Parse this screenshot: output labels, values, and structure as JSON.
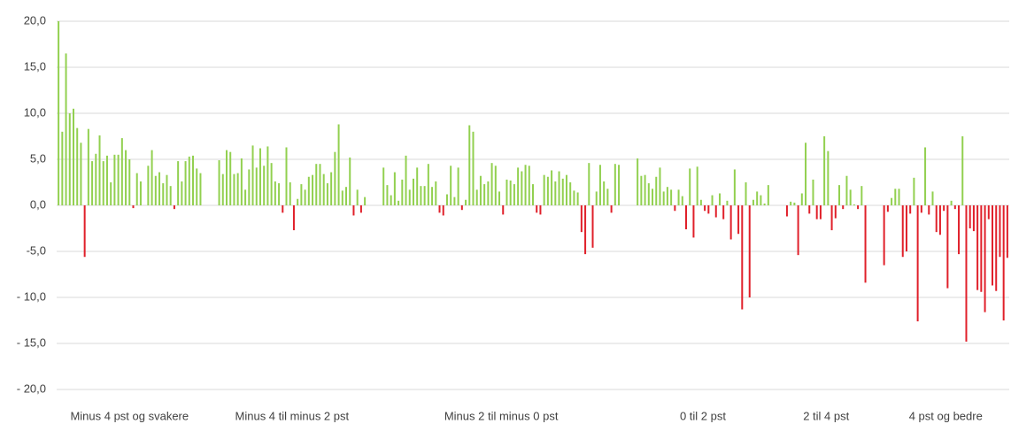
{
  "chart_data": {
    "type": "grouped-bar",
    "ylim": [
      -20,
      20
    ],
    "yticks": [
      {
        "value": 20,
        "label": "20,0"
      },
      {
        "value": 15,
        "label": "15,0"
      },
      {
        "value": 10,
        "label": "10,0"
      },
      {
        "value": 5,
        "label": "5,0"
      },
      {
        "value": 0,
        "label": "0,0"
      },
      {
        "value": -5,
        "label": "-5,0"
      },
      {
        "value": -10,
        "label": "- 10,0"
      },
      {
        "value": -15,
        "label": "- 15,0"
      },
      {
        "value": -20,
        "label": "- 20,0"
      }
    ],
    "grid": true,
    "positive_color": "#92d050",
    "negative_color": "#e0202a",
    "groups": [
      {
        "name": "Minus 4  pst og svakere",
        "values": [
          20,
          8,
          16.5,
          10,
          10.5,
          8.4,
          6.8,
          -5.6,
          8.3,
          4.8,
          5.6,
          7.6,
          4.8,
          5.4,
          2.5,
          5.5,
          5.5,
          7.3,
          6,
          5,
          -0.3,
          3.5,
          2.6,
          0,
          4.3,
          6,
          3.2,
          3.6,
          2.4,
          3.3,
          2.1,
          -0.4,
          4.8,
          2.6,
          4.8,
          5.3,
          5.4,
          4,
          3.5
        ]
      },
      {
        "name": "Minus 4 til minus 2 pst",
        "values": [
          4.9,
          3.4,
          6,
          5.8,
          3.4,
          3.5,
          5.1,
          1.7,
          3.9,
          6.5,
          4.1,
          6.2,
          4.3,
          6.4,
          4.6,
          2.6,
          2.4,
          -0.8,
          6.3,
          2.5,
          -2.7,
          0.7,
          2.3,
          1.7,
          3.1,
          3.3,
          4.5,
          4.5,
          3.4,
          2.4,
          3.6,
          5.8,
          8.8,
          1.6,
          2,
          5.2,
          -1.1,
          1.7,
          -0.8,
          0.9
        ]
      },
      {
        "name": "Minus 2 til minus 0 pst",
        "values": [
          4.1,
          2.2,
          1.1,
          3.6,
          0.5,
          2.8,
          5.4,
          1.7,
          2.9,
          4.1,
          2.1,
          2.1,
          4.5,
          2,
          2.6,
          -0.8,
          -1.1,
          1.2,
          4.3,
          0.9,
          4.1,
          -0.5,
          0.6,
          8.7,
          8,
          1.7,
          3.2,
          2.3,
          2.6,
          4.6,
          4.3,
          1.5,
          -1,
          2.8,
          2.7,
          2.3,
          4.1,
          3.7,
          4.4,
          4.3,
          2.3,
          -0.8,
          -1,
          3.3,
          3.1,
          3.8,
          2.6,
          3.7,
          2.9,
          3.3,
          2.5,
          1.6,
          1.4,
          -2.9,
          -5.3,
          4.6,
          -4.6,
          1.5,
          4.4,
          2.6,
          1.8,
          -0.8,
          4.5,
          4.4
        ]
      },
      {
        "name": "0 til 2 pst",
        "values": [
          5.1,
          3.2,
          3.3,
          2.4,
          1.8,
          3.1,
          4.1,
          1.5,
          2,
          1.7,
          -0.6,
          1.7,
          1,
          -2.6,
          4,
          -3.5,
          4.2,
          0.6,
          -0.6,
          -0.9,
          1.1,
          -1.3,
          1.3,
          -1.5,
          0.5,
          -3.7,
          3.9,
          -3.1,
          -11.3,
          2.5,
          -10,
          0.6,
          1.5,
          1.1,
          0.2,
          2.2
        ]
      },
      {
        "name": "2 til 4 pst",
        "values": [
          -1.2,
          0.4,
          0.3,
          -5.4,
          1.3,
          6.8,
          -0.9,
          2.8,
          -1.5,
          -1.5,
          7.5,
          5.9,
          -2.7,
          -1.4,
          2.2,
          -0.4,
          3.2,
          1.7,
          0.1,
          -0.4,
          2.1,
          -8.4
        ]
      },
      {
        "name": "4 pst og bedre",
        "values": [
          -6.5,
          -0.7,
          0.8,
          1.8,
          1.8,
          -5.6,
          -5,
          -0.9,
          3,
          -12.6,
          -0.8,
          6.3,
          -1,
          1.5,
          -2.9,
          -3.2,
          -0.6,
          -9,
          0.5,
          -0.4,
          -5.3,
          7.5,
          -14.8,
          -2.5,
          -2.8,
          -9.2,
          -9.4,
          -11.6,
          -1.5,
          -8.7,
          -9.3,
          -5.6,
          -12.5,
          -5.7
        ]
      }
    ]
  }
}
